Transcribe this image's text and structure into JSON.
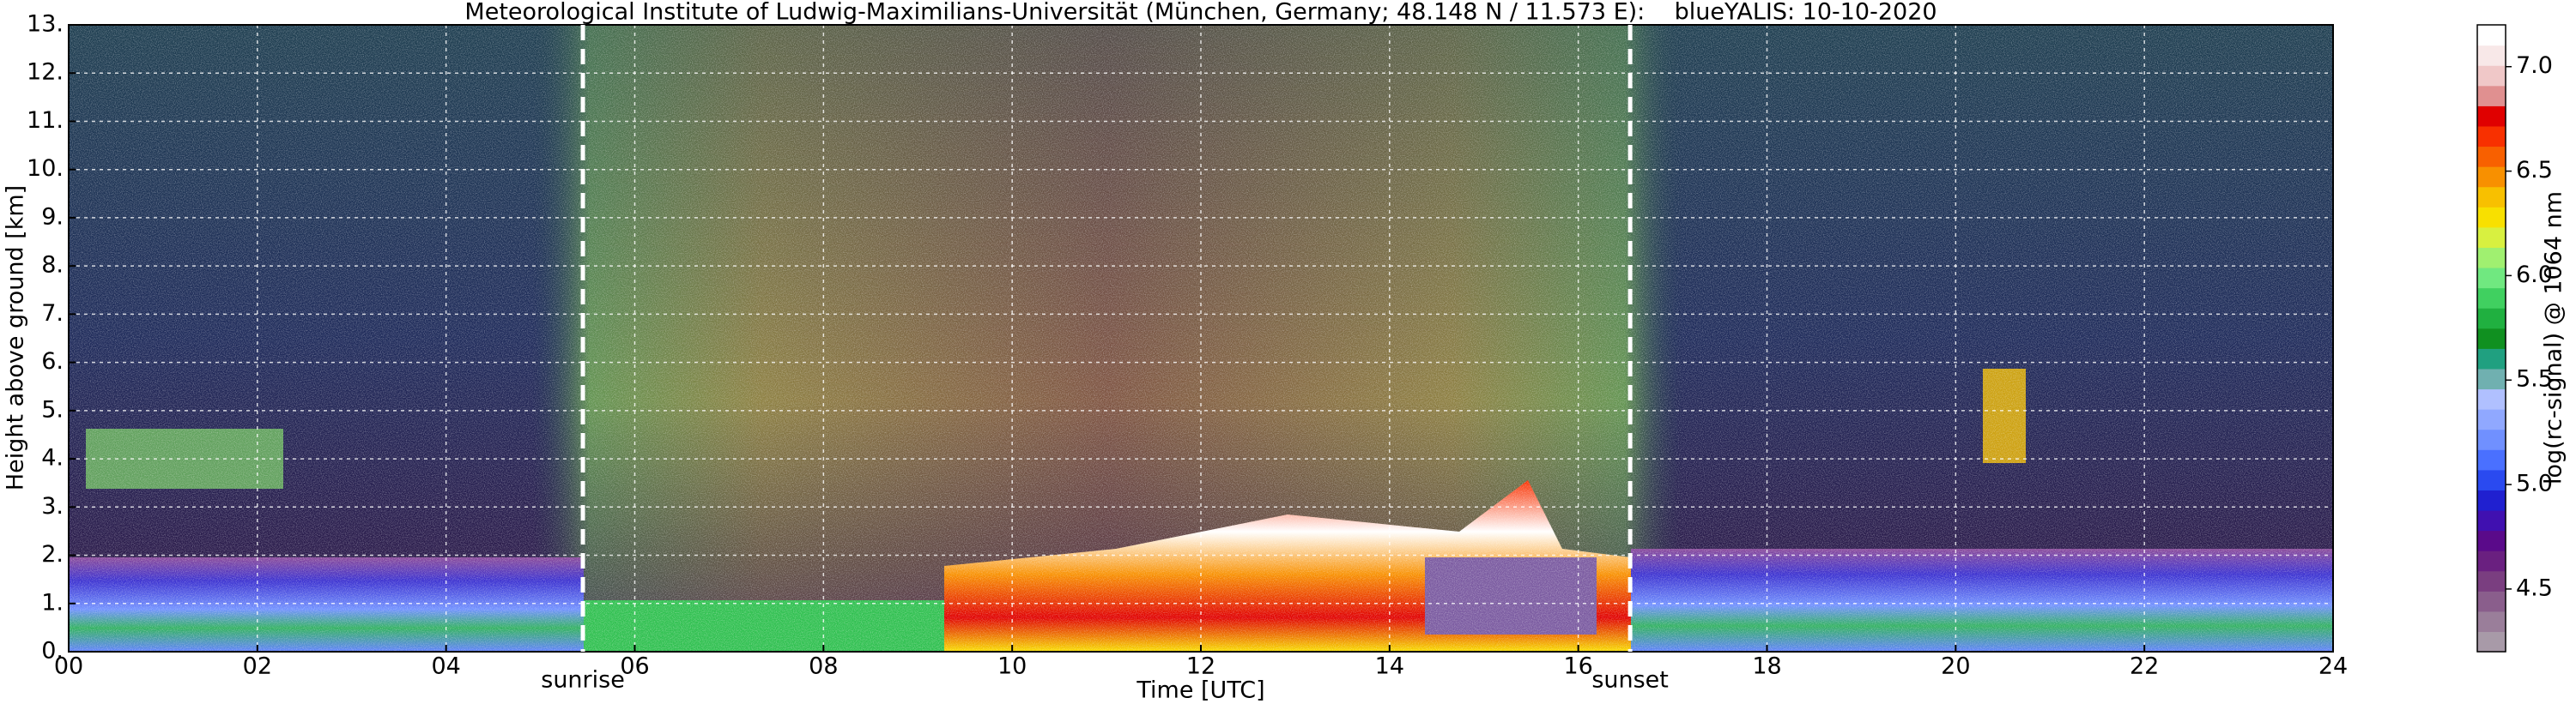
{
  "chart_data": {
    "type": "heatmap",
    "title": "Meteorological Institute of Ludwig-Maximilians-Universität (München, Germany; 48.148 N / 11.573 E):    blueYALIS: 10-10-2020",
    "xlabel": "Time [UTC]",
    "ylabel": "Height above ground [km]",
    "xlim": [
      0,
      24
    ],
    "xticks": [
      {
        "value": 0,
        "label": "00"
      },
      {
        "value": 2,
        "label": "02"
      },
      {
        "value": 4,
        "label": "04"
      },
      {
        "value": 6,
        "label": "06"
      },
      {
        "value": 8,
        "label": "08"
      },
      10,
      12,
      14,
      16,
      18,
      20,
      22,
      24
    ],
    "ylim": [
      0,
      13
    ],
    "yticks": [
      {
        "value": 0,
        "label": "0."
      },
      {
        "value": 1,
        "label": "1."
      },
      {
        "value": 2,
        "label": "2."
      },
      {
        "value": 3,
        "label": "3."
      },
      {
        "value": 4,
        "label": "4."
      },
      {
        "value": 5,
        "label": "5."
      },
      {
        "value": 6,
        "label": "6."
      },
      {
        "value": 7,
        "label": "7."
      },
      {
        "value": 8,
        "label": "8."
      },
      {
        "value": 9,
        "label": "9."
      },
      {
        "value": 10,
        "label": "10."
      },
      {
        "value": 11,
        "label": "11."
      },
      {
        "value": 12,
        "label": "12."
      },
      {
        "value": 13,
        "label": "13."
      }
    ],
    "grid": true,
    "annotations": [
      {
        "text": "sunrise",
        "x": 5.45
      },
      {
        "text": "sunset",
        "x": 16.55
      }
    ],
    "colorbar": {
      "label": "log(rc-signal) @ 1064 nm",
      "clim": [
        4.2,
        7.2
      ],
      "ticks": [
        4.5,
        {
          "value": 5,
          "label": "5.0"
        },
        5.5,
        {
          "value": 6,
          "label": "6.0"
        },
        6.5,
        {
          "value": 7,
          "label": "7.0"
        }
      ],
      "colors": [
        "#a89aa8",
        "#9a7e9a",
        "#8a5e8c",
        "#7a3e80",
        "#6a2080",
        "#5a0a8a",
        "#4010b0",
        "#2020d0",
        "#2a4af0",
        "#4a70ff",
        "#7090ff",
        "#90a8ff",
        "#b0c0ff",
        "#70b0b0",
        "#20a080",
        "#109020",
        "#20b040",
        "#40d060",
        "#70e880",
        "#a0f070",
        "#d8f040",
        "#f8e000",
        "#f8c000",
        "#f89000",
        "#f86000",
        "#f83000",
        "#e00000",
        "#e09090",
        "#f0c8c8",
        "#f8e8e8",
        "#ffffff"
      ]
    }
  }
}
